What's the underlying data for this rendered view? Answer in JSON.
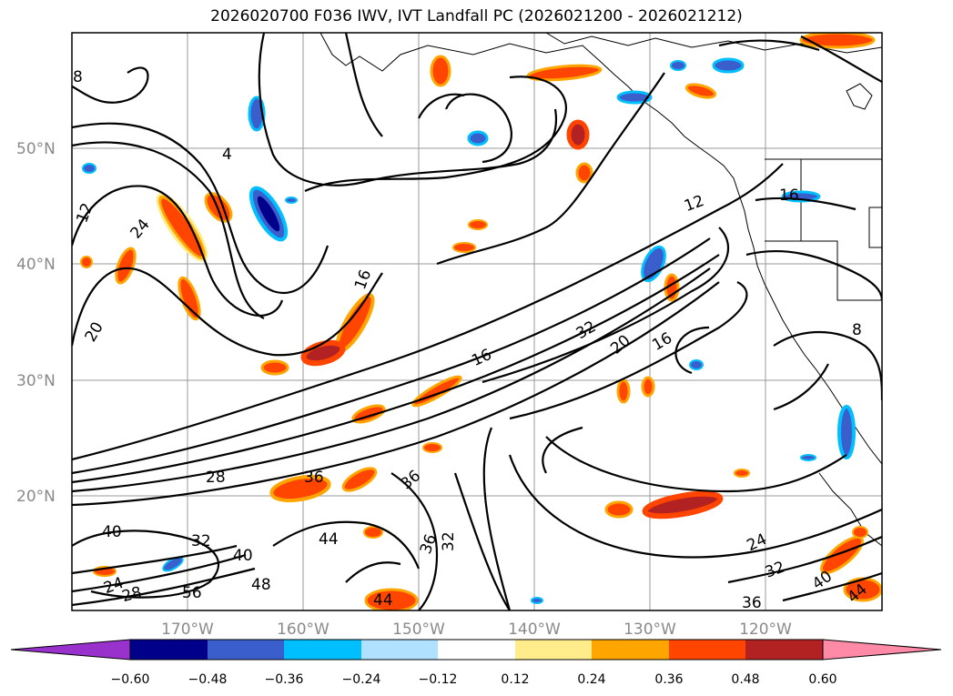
{
  "title": "2026020700 F036 IWV, IVT Landfall PC (2026021200 - 2026021212)",
  "map": {
    "lat_labels": [
      "50°N",
      "40°N",
      "30°N",
      "20°N"
    ],
    "lon_labels": [
      "170°W",
      "160°W",
      "150°W",
      "140°W",
      "130°W",
      "120°W"
    ],
    "contour_labels": [
      "8",
      "4",
      "12",
      "16",
      "20",
      "24",
      "28",
      "32",
      "36",
      "40",
      "44",
      "48",
      "56",
      "16",
      "16",
      "12",
      "8",
      "32",
      "20",
      "16",
      "24",
      "32",
      "36",
      "40",
      "44",
      "36",
      "36",
      "32",
      "40",
      "24",
      "28",
      "44"
    ]
  },
  "colorbar": {
    "tick_labels": [
      "−0.60",
      "−0.48",
      "−0.36",
      "−0.24",
      "−0.12",
      "0.12",
      "0.24",
      "0.36",
      "0.48",
      "0.60"
    ],
    "colors": [
      "#9932cc",
      "#00008b",
      "#3a5fcd",
      "#00bfff",
      "#b0e2ff",
      "#ffffff",
      "#ffec8b",
      "#ffa500",
      "#ff4500",
      "#b22222",
      "#ff8aa8"
    ]
  }
}
